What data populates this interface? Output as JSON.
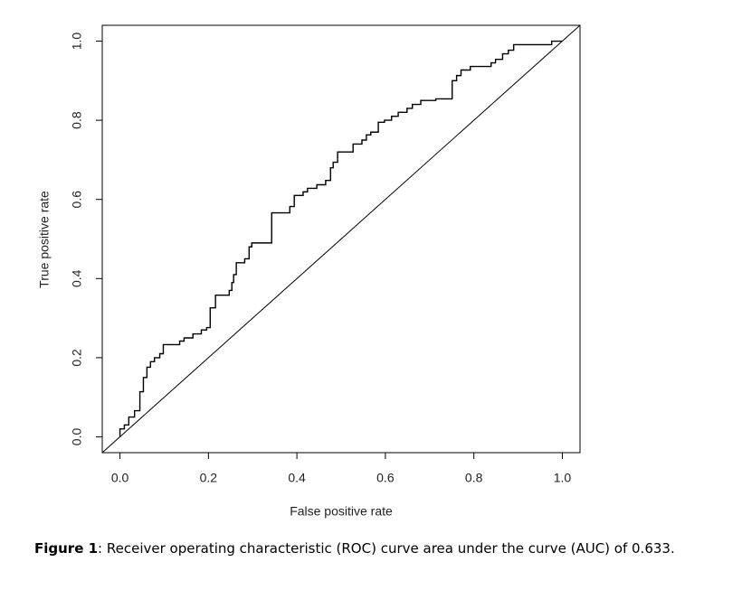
{
  "chart_data": {
    "type": "line",
    "x_label": "False positive rate",
    "y_label": "True positive rate",
    "caption_label": "Figure 1",
    "caption_text": ": Receiver operating characteristic (ROC) curve area under the curve (AUC) of 0.633.",
    "xlim": [
      -0.04,
      1.04
    ],
    "ylim": [
      -0.04,
      1.04
    ],
    "xticks": [
      {
        "value": 0,
        "label": "0.0"
      },
      0.2,
      0.4,
      0.6,
      0.8,
      {
        "value": 1,
        "label": "1.0"
      }
    ],
    "yticks": [
      {
        "value": 0,
        "label": "0.0"
      },
      0.2,
      0.4,
      0.6,
      0.8,
      {
        "value": 1,
        "label": "1.0"
      }
    ],
    "reference_diagonal": true,
    "x": [
      0,
      0,
      0.01,
      0.01,
      0.02,
      0.02,
      0.033,
      0.033,
      0.045,
      0.045,
      0.053,
      0.053,
      0.061,
      0.061,
      0.069,
      0.069,
      0.078,
      0.078,
      0.09,
      0.09,
      0.098,
      0.098,
      0.135,
      0.135,
      0.145,
      0.145,
      0.165,
      0.165,
      0.184,
      0.184,
      0.196,
      0.196,
      0.204,
      0.204,
      0.216,
      0.216,
      0.247,
      0.247,
      0.253,
      0.253,
      0.257,
      0.257,
      0.263,
      0.263,
      0.282,
      0.282,
      0.292,
      0.292,
      0.298,
      0.298,
      0.343,
      0.343,
      0.384,
      0.384,
      0.394,
      0.394,
      0.414,
      0.414,
      0.424,
      0.424,
      0.445,
      0.445,
      0.465,
      0.465,
      0.476,
      0.476,
      0.482,
      0.482,
      0.492,
      0.492,
      0.527,
      0.527,
      0.547,
      0.547,
      0.557,
      0.557,
      0.567,
      0.567,
      0.584,
      0.584,
      0.598,
      0.598,
      0.614,
      0.614,
      0.629,
      0.629,
      0.649,
      0.649,
      0.661,
      0.661,
      0.68,
      0.68,
      0.714,
      0.714,
      0.751,
      0.751,
      0.761,
      0.761,
      0.771,
      0.771,
      0.792,
      0.792,
      0.839,
      0.839,
      0.849,
      0.849,
      0.865,
      0.865,
      0.878,
      0.878,
      0.89,
      0.89,
      0.976,
      0.976,
      1
    ],
    "series": [
      {
        "color": "#000000",
        "values": [
          0,
          0.02,
          0.02,
          0.03,
          0.03,
          0.05,
          0.05,
          0.066,
          0.066,
          0.114,
          0.114,
          0.15,
          0.15,
          0.176,
          0.176,
          0.19,
          0.19,
          0.2,
          0.2,
          0.21,
          0.21,
          0.233,
          0.233,
          0.242,
          0.242,
          0.25,
          0.25,
          0.26,
          0.26,
          0.27,
          0.27,
          0.276,
          0.276,
          0.326,
          0.326,
          0.358,
          0.358,
          0.37,
          0.37,
          0.39,
          0.39,
          0.41,
          0.41,
          0.44,
          0.44,
          0.45,
          0.45,
          0.48,
          0.48,
          0.49,
          0.49,
          0.566,
          0.566,
          0.582,
          0.582,
          0.61,
          0.61,
          0.619,
          0.619,
          0.628,
          0.628,
          0.637,
          0.637,
          0.648,
          0.648,
          0.68,
          0.68,
          0.694,
          0.694,
          0.72,
          0.72,
          0.74,
          0.74,
          0.75,
          0.75,
          0.763,
          0.763,
          0.77,
          0.77,
          0.795,
          0.795,
          0.8,
          0.8,
          0.81,
          0.81,
          0.82,
          0.82,
          0.83,
          0.83,
          0.84,
          0.84,
          0.85,
          0.85,
          0.854,
          0.854,
          0.9,
          0.9,
          0.913,
          0.913,
          0.927,
          0.927,
          0.936,
          0.936,
          0.945,
          0.945,
          0.954,
          0.954,
          0.968,
          0.968,
          0.977,
          0.977,
          0.991,
          0.991,
          1,
          1
        ]
      }
    ]
  }
}
